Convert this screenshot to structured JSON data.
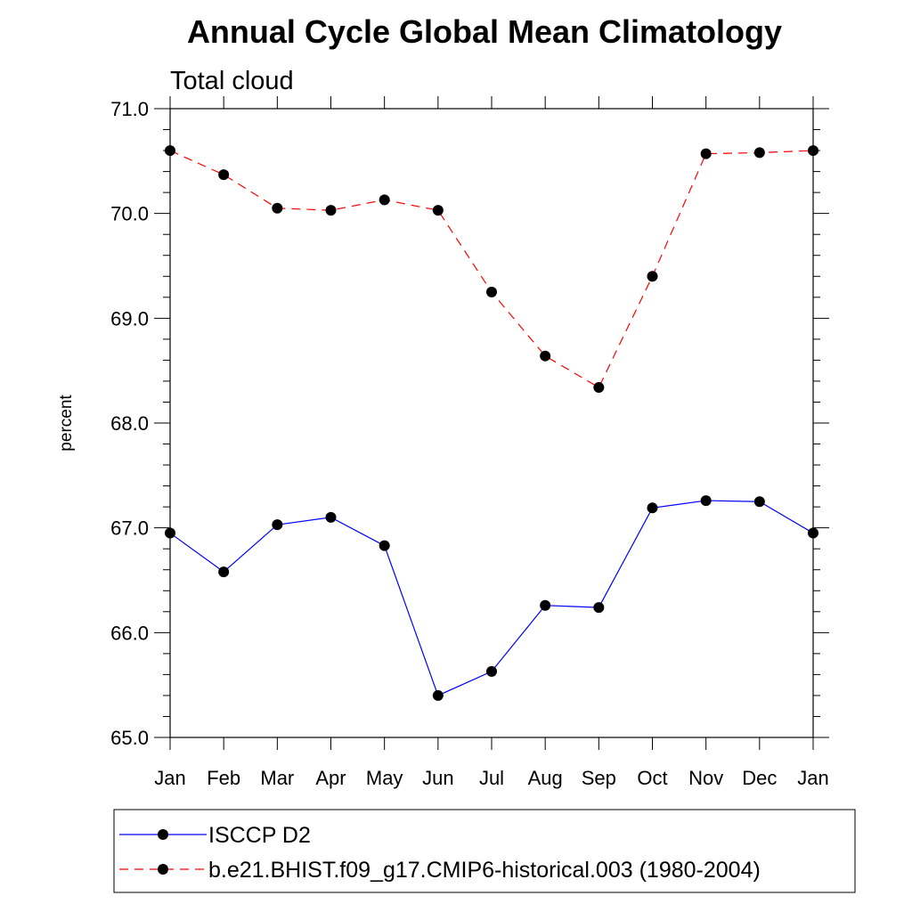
{
  "chart_data": {
    "type": "line",
    "title": "Annual Cycle Global Mean Climatology",
    "subtitle": "Total cloud",
    "xlabel": "",
    "ylabel": "percent",
    "categories": [
      "Jan",
      "Feb",
      "Mar",
      "Apr",
      "May",
      "Jun",
      "Jul",
      "Aug",
      "Sep",
      "Oct",
      "Nov",
      "Dec",
      "Jan"
    ],
    "ylim": [
      65.0,
      71.0
    ],
    "yticks": [
      "65.0",
      "66.0",
      "67.0",
      "68.0",
      "69.0",
      "70.0",
      "71.0"
    ],
    "legend_position": "bottom",
    "series": [
      {
        "name": "ISCCP D2",
        "color": "#0000ff",
        "dash": "solid",
        "values": [
          66.95,
          66.58,
          67.03,
          67.1,
          66.83,
          65.4,
          65.63,
          66.26,
          66.24,
          67.19,
          67.26,
          67.25,
          66.95
        ]
      },
      {
        "name": "b.e21.BHIST.f09_g17.CMIP6-historical.003 (1980-2004)",
        "color": "#ff0000",
        "dash": "dashed",
        "values": [
          70.6,
          70.37,
          70.05,
          70.03,
          70.13,
          70.03,
          69.25,
          68.64,
          68.34,
          69.4,
          70.57,
          70.58,
          70.6
        ]
      }
    ]
  }
}
